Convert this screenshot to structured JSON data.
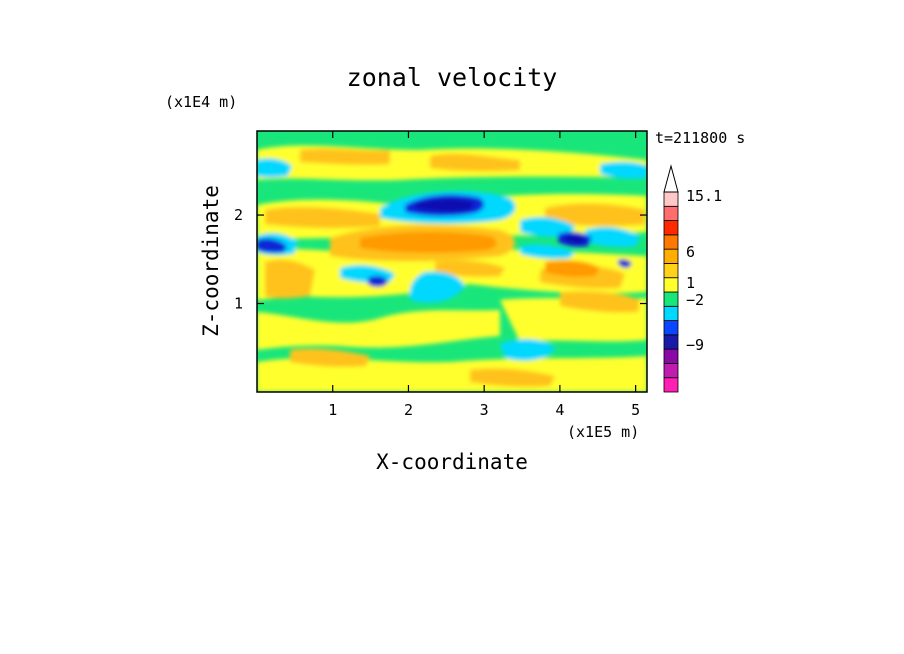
{
  "chart_data": {
    "type": "heatmap",
    "title": "zonal velocity",
    "xlabel": "X-coordinate",
    "ylabel": "Z-coordinate",
    "x_multiplier": "(x1E5 m)",
    "y_multiplier": "(x1E4 m)",
    "time_label": "t=211800 s",
    "xlim": [
      0,
      5.15
    ],
    "ylim": [
      0,
      2.95
    ],
    "x_ticks": [
      "1",
      "2",
      "3",
      "4",
      "5"
    ],
    "y_ticks": [
      "1",
      "2"
    ],
    "colorbar": {
      "labels": [
        "15.1",
        "6",
        "1",
        "−2",
        "−9"
      ],
      "label_values": [
        15.1,
        6,
        1,
        -2,
        -9
      ],
      "bands": [
        {
          "color": "#ff1fb4"
        },
        {
          "color": "#c01cb0"
        },
        {
          "color": "#8a0aa8"
        },
        {
          "color": "#1a1aa8"
        },
        {
          "color": "#0a46ff"
        },
        {
          "color": "#00d8ff"
        },
        {
          "color": "#19e67a"
        },
        {
          "color": "#ffff2e"
        },
        {
          "color": "#ffd21a"
        },
        {
          "color": "#ffae00"
        },
        {
          "color": "#ff7800"
        },
        {
          "color": "#ff2a00"
        },
        {
          "color": "#ff6e6e"
        },
        {
          "color": "#ffc8c8"
        }
      ],
      "extend_max": true
    },
    "field_levels": [
      {
        "name": "strong-negative",
        "color": "#0a28d8"
      },
      {
        "name": "very-strong-negative",
        "color": "#0a0ab0"
      },
      {
        "name": "negative",
        "color": "#00d8ff"
      },
      {
        "name": "near-zero",
        "color": "#19e67a"
      },
      {
        "name": "weak-positive",
        "color": "#ffff2e"
      },
      {
        "name": "positive",
        "color": "#ffc21a"
      },
      {
        "name": "strong-positive",
        "color": "#ff9a00"
      }
    ]
  }
}
